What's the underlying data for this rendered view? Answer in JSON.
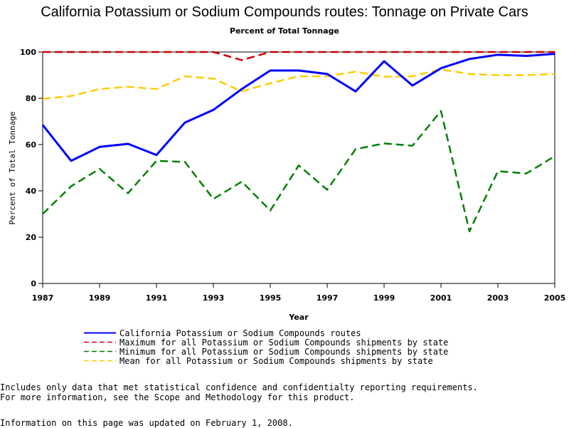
{
  "chart_data": {
    "type": "line",
    "title": "California Potassium or Sodium Compounds routes: Tonnage on Private Cars",
    "subtitle": "Percent of Total Tonnage",
    "xlabel": "Year",
    "ylabel": "Percent of Total Tonnage",
    "xlim": [
      1987,
      2005
    ],
    "ylim": [
      0,
      100
    ],
    "x_ticks": [
      1987,
      1989,
      1991,
      1993,
      1995,
      1997,
      1999,
      2001,
      2003,
      2005
    ],
    "y_ticks": [
      0,
      20,
      40,
      60,
      80,
      100
    ],
    "x": [
      1987,
      1988,
      1989,
      1990,
      1991,
      1992,
      1993,
      1994,
      1995,
      1996,
      1997,
      1998,
      1999,
      2000,
      2001,
      2002,
      2003,
      2004,
      2005
    ],
    "grid": false,
    "legend_position": "bottom",
    "series": [
      {
        "name": "California Potassium or Sodium Compounds routes",
        "color": "#0000ff",
        "style": "solid",
        "values": [
          68.5,
          53,
          59,
          60.3,
          55.5,
          69.5,
          75,
          84,
          92,
          92,
          90.5,
          83,
          96,
          85.5,
          93,
          97,
          98.8,
          98.3,
          99.2
        ]
      },
      {
        "name": "Maximum for all Potassium or Sodium Compounds shipments by state",
        "color": "#cc0000",
        "style": "dashed",
        "values": [
          100,
          100,
          100,
          100,
          100,
          100,
          100,
          96.5,
          100,
          100,
          100,
          100,
          100,
          100,
          100,
          100,
          100,
          100,
          100
        ]
      },
      {
        "name": "Minimum for all Potassium or Sodium Compounds shipments by state",
        "color": "#008000",
        "style": "dashed",
        "values": [
          30,
          42,
          49.5,
          39,
          53,
          52.5,
          36.5,
          44,
          31.5,
          51,
          40.5,
          58,
          60.5,
          59.5,
          74.5,
          22.5,
          48.5,
          47.5,
          55
        ]
      },
      {
        "name": "Mean for all Potassium or Sodium Compounds shipments by state",
        "color": "#ffcc00",
        "style": "dashed",
        "values": [
          79.8,
          81,
          84,
          85,
          84,
          89.5,
          88.5,
          83,
          86.5,
          89.5,
          89.5,
          91.5,
          89.3,
          89.5,
          92.5,
          90.5,
          90,
          90,
          90.5
        ]
      }
    ]
  },
  "notes": [
    "Includes only data that met statistical confidence and confidentialty reporting requirements.",
    "For more information, see the Scope and Methodology for this product."
  ],
  "updated": "Information on this page was updated on February 1, 2008."
}
